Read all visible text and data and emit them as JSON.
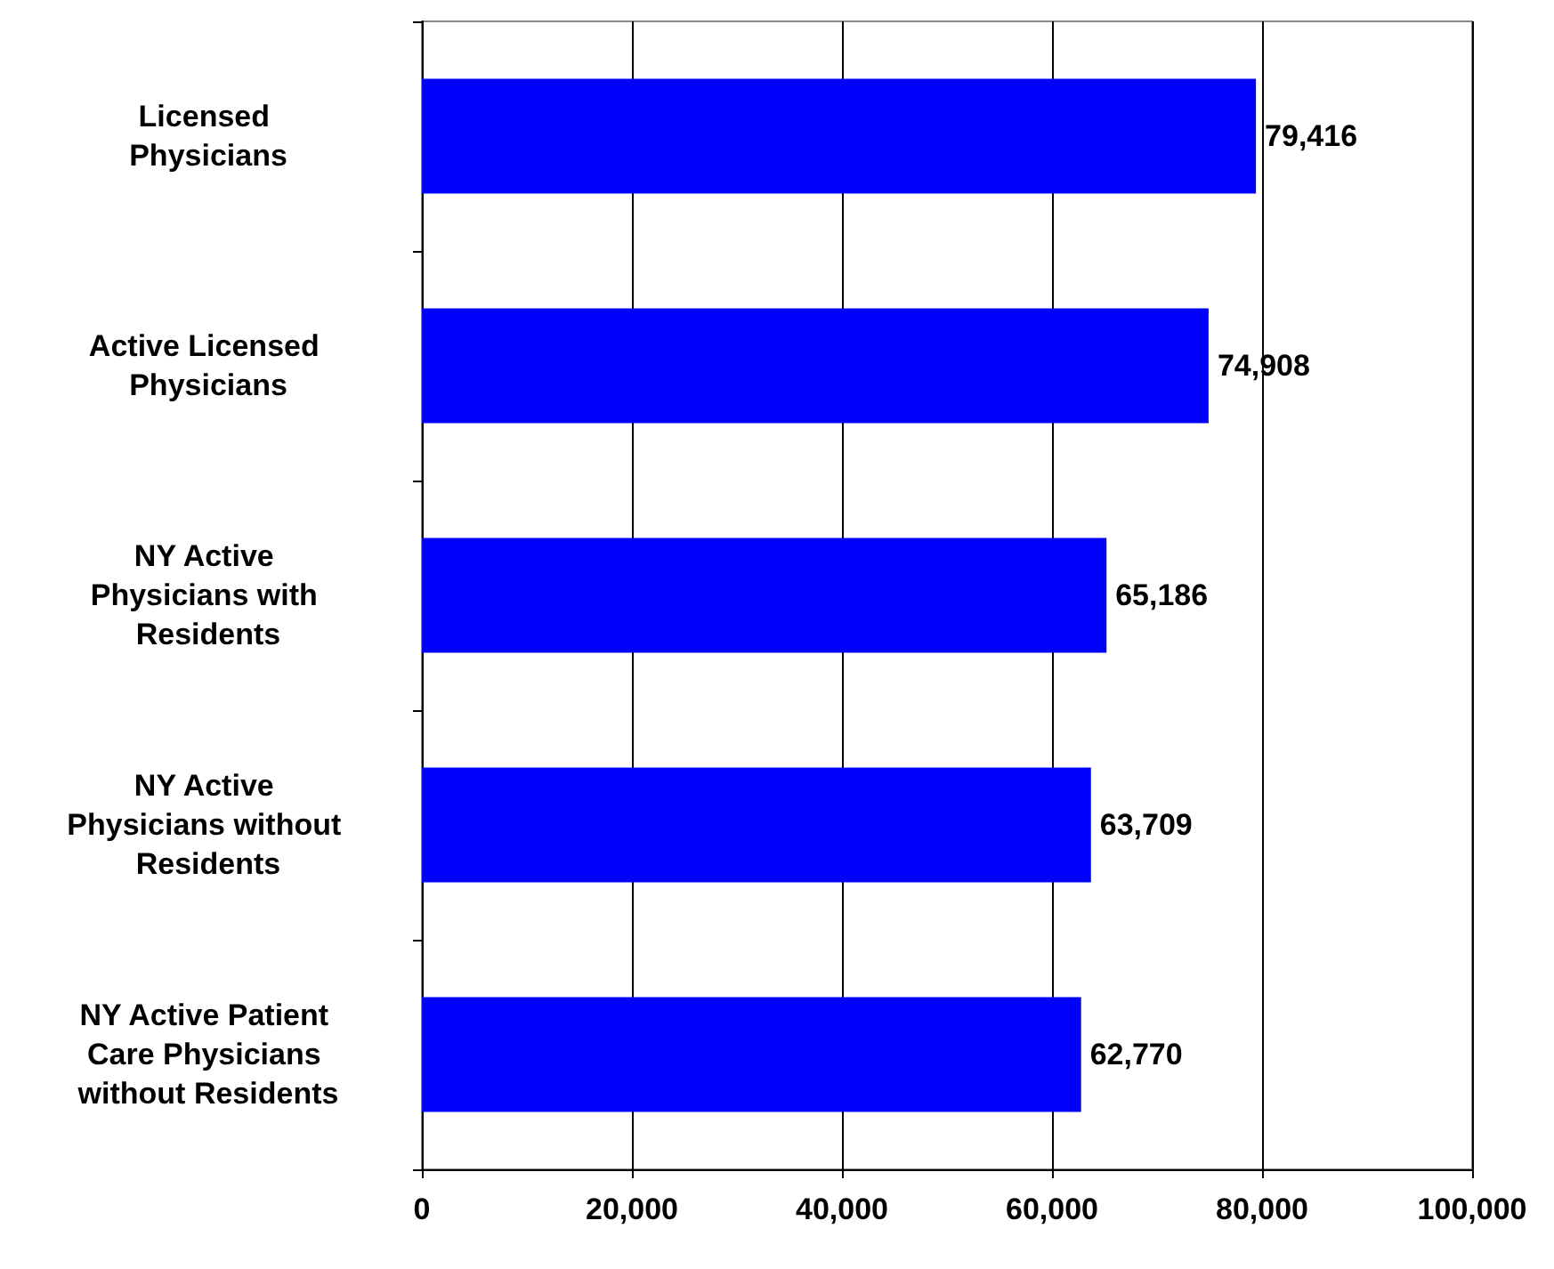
{
  "chart_data": {
    "type": "bar",
    "orientation": "horizontal",
    "categories": [
      "Licensed Physicians",
      "Active Licensed Physicians",
      "NY Active Physicians with Residents",
      "NY Active Physicians without Residents",
      "NY Active Patient Care Physicians without Residents"
    ],
    "values": [
      79416,
      74908,
      65186,
      63709,
      62770
    ],
    "color": "#0000ff",
    "value_labels": [
      "79,416",
      "74,908",
      "65,186",
      "63,709",
      "62,770"
    ],
    "xlim": [
      0,
      100000
    ],
    "xticks": [
      0,
      {
        "value": 20000,
        "label": "20,000"
      },
      {
        "value": 40000,
        "label": "40,000"
      },
      {
        "value": 60000,
        "label": "60,000"
      },
      {
        "value": 80000,
        "label": "80,000"
      },
      {
        "value": 100000,
        "label": "100,000"
      }
    ],
    "grid": "x"
  }
}
